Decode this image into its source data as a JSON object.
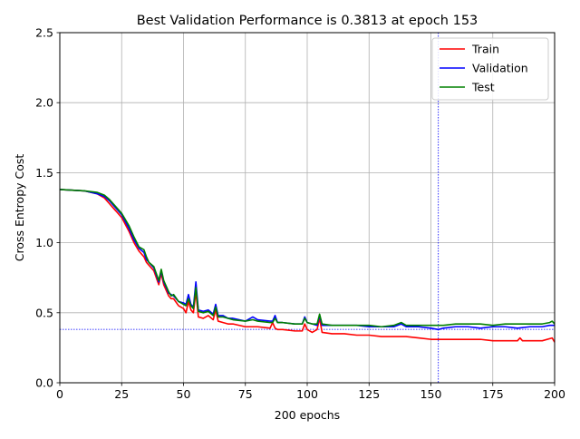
{
  "chart_data": {
    "type": "line",
    "title": "Best Validation Performance is 0.3813 at epoch 153",
    "xlabel": "200 epochs",
    "ylabel": "Cross Entropy Cost",
    "xlim": [
      0,
      200
    ],
    "ylim": [
      0,
      2.5
    ],
    "x_ticks": [
      "0",
      "25",
      "50",
      "75",
      "100",
      "125",
      "150",
      "175",
      "200"
    ],
    "y_ticks": [
      "0.0",
      "0.5",
      "1.0",
      "1.5",
      "2.0",
      "2.5"
    ],
    "grid": true,
    "legend_position": "top-right",
    "best_epoch": 153,
    "best_value": 0.3813,
    "series": [
      {
        "name": "Train",
        "color": "#ff0000",
        "x": [
          0,
          10,
          15,
          18,
          20,
          22,
          25,
          28,
          30,
          32,
          34,
          35,
          36,
          38,
          40,
          41,
          42,
          44,
          45,
          46,
          48,
          50,
          51,
          52,
          53,
          54,
          55,
          56,
          58,
          60,
          62,
          63,
          64,
          66,
          68,
          70,
          75,
          80,
          85,
          86,
          87,
          88,
          90,
          95,
          98,
          99,
          100,
          102,
          104,
          105,
          106,
          110,
          115,
          120,
          125,
          130,
          135,
          140,
          145,
          150,
          155,
          160,
          165,
          170,
          175,
          180,
          185,
          186,
          187,
          190,
          195,
          199,
          200
        ],
        "y": [
          1.38,
          1.37,
          1.35,
          1.32,
          1.28,
          1.24,
          1.18,
          1.08,
          1.0,
          0.94,
          0.9,
          0.86,
          0.84,
          0.8,
          0.7,
          0.78,
          0.7,
          0.62,
          0.6,
          0.6,
          0.55,
          0.53,
          0.5,
          0.58,
          0.52,
          0.5,
          0.65,
          0.47,
          0.46,
          0.48,
          0.45,
          0.52,
          0.44,
          0.43,
          0.42,
          0.42,
          0.4,
          0.4,
          0.39,
          0.43,
          0.39,
          0.38,
          0.38,
          0.37,
          0.37,
          0.42,
          0.38,
          0.36,
          0.38,
          0.46,
          0.36,
          0.35,
          0.35,
          0.34,
          0.34,
          0.33,
          0.33,
          0.33,
          0.32,
          0.31,
          0.31,
          0.31,
          0.31,
          0.31,
          0.3,
          0.3,
          0.3,
          0.32,
          0.3,
          0.3,
          0.3,
          0.32,
          0.29
        ]
      },
      {
        "name": "Validation",
        "color": "#0000ff",
        "x": [
          0,
          10,
          15,
          18,
          20,
          22,
          25,
          28,
          30,
          32,
          34,
          35,
          36,
          38,
          40,
          41,
          42,
          44,
          45,
          46,
          48,
          50,
          51,
          52,
          53,
          54,
          55,
          56,
          58,
          60,
          62,
          63,
          64,
          66,
          68,
          70,
          75,
          78,
          80,
          85,
          86,
          87,
          88,
          90,
          95,
          98,
          99,
          100,
          102,
          104,
          105,
          106,
          110,
          115,
          120,
          125,
          130,
          135,
          138,
          140,
          145,
          150,
          153,
          155,
          160,
          165,
          170,
          175,
          180,
          185,
          190,
          195,
          198,
          200
        ],
        "y": [
          1.38,
          1.37,
          1.35,
          1.33,
          1.3,
          1.26,
          1.2,
          1.1,
          1.02,
          0.96,
          0.93,
          0.88,
          0.86,
          0.82,
          0.72,
          0.8,
          0.72,
          0.64,
          0.63,
          0.62,
          0.58,
          0.57,
          0.56,
          0.63,
          0.56,
          0.54,
          0.72,
          0.52,
          0.51,
          0.52,
          0.49,
          0.56,
          0.48,
          0.48,
          0.46,
          0.46,
          0.44,
          0.47,
          0.45,
          0.44,
          0.44,
          0.48,
          0.43,
          0.43,
          0.42,
          0.42,
          0.47,
          0.43,
          0.42,
          0.41,
          0.48,
          0.41,
          0.41,
          0.41,
          0.41,
          0.4,
          0.4,
          0.4,
          0.42,
          0.4,
          0.4,
          0.39,
          0.38,
          0.39,
          0.4,
          0.4,
          0.39,
          0.4,
          0.4,
          0.39,
          0.4,
          0.4,
          0.41,
          0.41
        ]
      },
      {
        "name": "Test",
        "color": "#008000",
        "x": [
          0,
          10,
          15,
          18,
          20,
          22,
          25,
          28,
          30,
          32,
          34,
          35,
          36,
          38,
          40,
          41,
          42,
          44,
          45,
          46,
          48,
          50,
          51,
          52,
          53,
          54,
          55,
          56,
          58,
          60,
          62,
          63,
          64,
          66,
          68,
          70,
          75,
          78,
          80,
          85,
          86,
          87,
          88,
          90,
          95,
          98,
          99,
          100,
          102,
          104,
          105,
          106,
          110,
          115,
          120,
          125,
          130,
          135,
          138,
          140,
          145,
          150,
          155,
          160,
          165,
          170,
          175,
          180,
          185,
          190,
          195,
          198,
          199,
          200
        ],
        "y": [
          1.38,
          1.37,
          1.36,
          1.34,
          1.31,
          1.27,
          1.21,
          1.12,
          1.04,
          0.97,
          0.95,
          0.9,
          0.86,
          0.83,
          0.73,
          0.81,
          0.73,
          0.65,
          0.62,
          0.63,
          0.58,
          0.56,
          0.55,
          0.6,
          0.55,
          0.53,
          0.68,
          0.51,
          0.5,
          0.51,
          0.48,
          0.54,
          0.47,
          0.47,
          0.46,
          0.45,
          0.44,
          0.45,
          0.44,
          0.43,
          0.43,
          0.46,
          0.43,
          0.43,
          0.42,
          0.42,
          0.46,
          0.43,
          0.42,
          0.42,
          0.49,
          0.42,
          0.41,
          0.41,
          0.41,
          0.41,
          0.4,
          0.41,
          0.43,
          0.41,
          0.41,
          0.41,
          0.41,
          0.42,
          0.42,
          0.42,
          0.41,
          0.42,
          0.42,
          0.42,
          0.42,
          0.43,
          0.44,
          0.42
        ]
      }
    ]
  }
}
